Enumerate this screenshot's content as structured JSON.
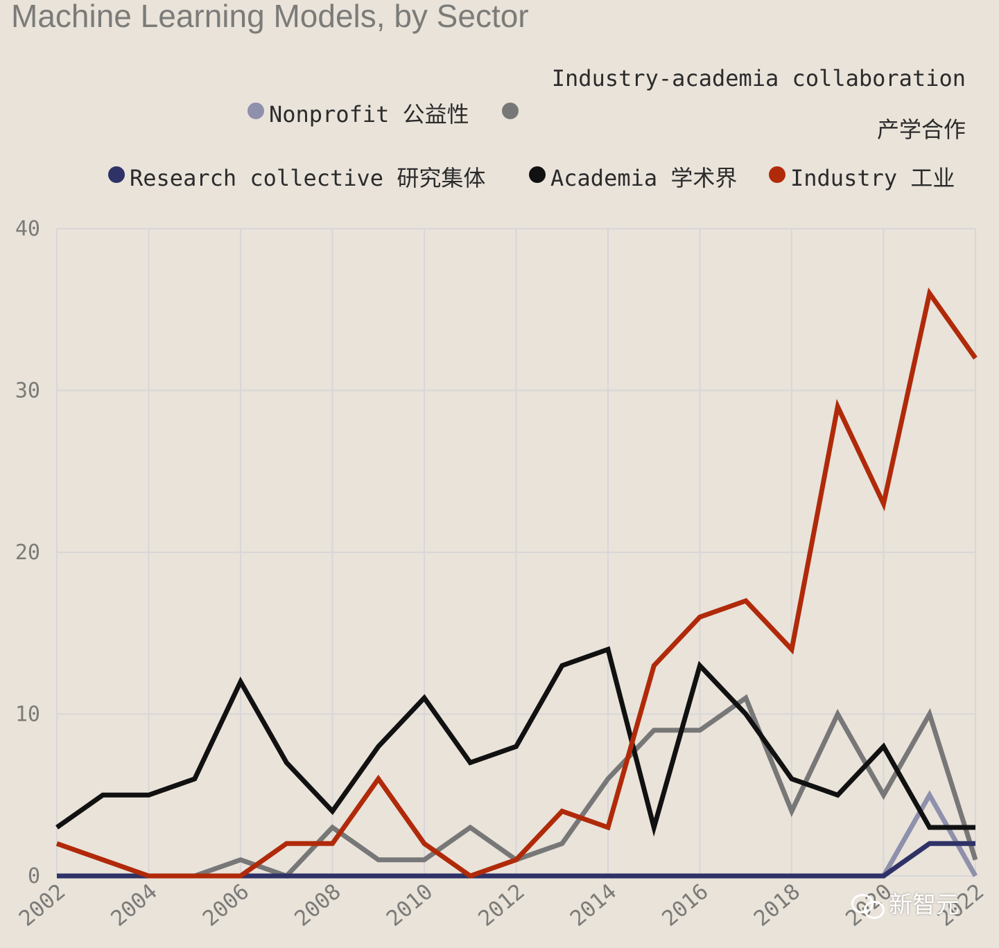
{
  "title": "Machine Learning Models, by Sector",
  "legend": {
    "collab_label": "Industry-academia collaboration",
    "collab_label_cn": "产学合作",
    "nonprofit_label": "Nonprofit 公益性",
    "research_label": "Research collective 研究集体",
    "academia_label": "Academia 学术界",
    "industry_label": "Industry 工业"
  },
  "watermark": "新智元",
  "chart_data": {
    "type": "line",
    "title": "Machine Learning Models, by Sector",
    "xlabel": "",
    "ylabel": "",
    "xlim": [
      2002,
      2022
    ],
    "ylim": [
      0,
      40
    ],
    "x_ticks": [
      "2002",
      "2004",
      "2006",
      "2008",
      "2010",
      "2012",
      "2014",
      "2016",
      "2018",
      "2020",
      "2022"
    ],
    "y_ticks": [
      "0",
      "10",
      "20",
      "30",
      "40"
    ],
    "grid": true,
    "legend_position": "top",
    "x": [
      2002,
      2003,
      2004,
      2005,
      2006,
      2007,
      2008,
      2009,
      2010,
      2011,
      2012,
      2013,
      2014,
      2015,
      2016,
      2017,
      2018,
      2019,
      2020,
      2021,
      2022
    ],
    "series": [
      {
        "name": "Industry-academia collaboration 产学合作",
        "color": "#777777",
        "values": [
          0,
          0,
          0,
          0,
          1,
          0,
          3,
          1,
          1,
          3,
          1,
          2,
          6,
          9,
          9,
          11,
          4,
          10,
          5,
          10,
          1
        ]
      },
      {
        "name": "Nonprofit 公益性",
        "color": "#8e90ac",
        "values": [
          0,
          0,
          0,
          0,
          0,
          0,
          0,
          0,
          0,
          0,
          0,
          0,
          0,
          0,
          0,
          0,
          0,
          0,
          0,
          5,
          0
        ]
      },
      {
        "name": "Research collective 研究集体",
        "color": "#2f3266",
        "values": [
          0,
          0,
          0,
          0,
          0,
          0,
          0,
          0,
          0,
          0,
          0,
          0,
          0,
          0,
          0,
          0,
          0,
          0,
          0,
          2,
          2
        ]
      },
      {
        "name": "Academia 学术界",
        "color": "#111111",
        "values": [
          3,
          5,
          5,
          6,
          12,
          7,
          4,
          8,
          11,
          7,
          8,
          13,
          14,
          3,
          13,
          10,
          6,
          5,
          8,
          3,
          3
        ]
      },
      {
        "name": "Industry 工业",
        "color": "#b02a0a",
        "values": [
          2,
          1,
          0,
          0,
          0,
          2,
          2,
          6,
          2,
          0,
          1,
          4,
          3,
          13,
          16,
          17,
          14,
          29,
          23,
          36,
          32
        ]
      }
    ]
  }
}
